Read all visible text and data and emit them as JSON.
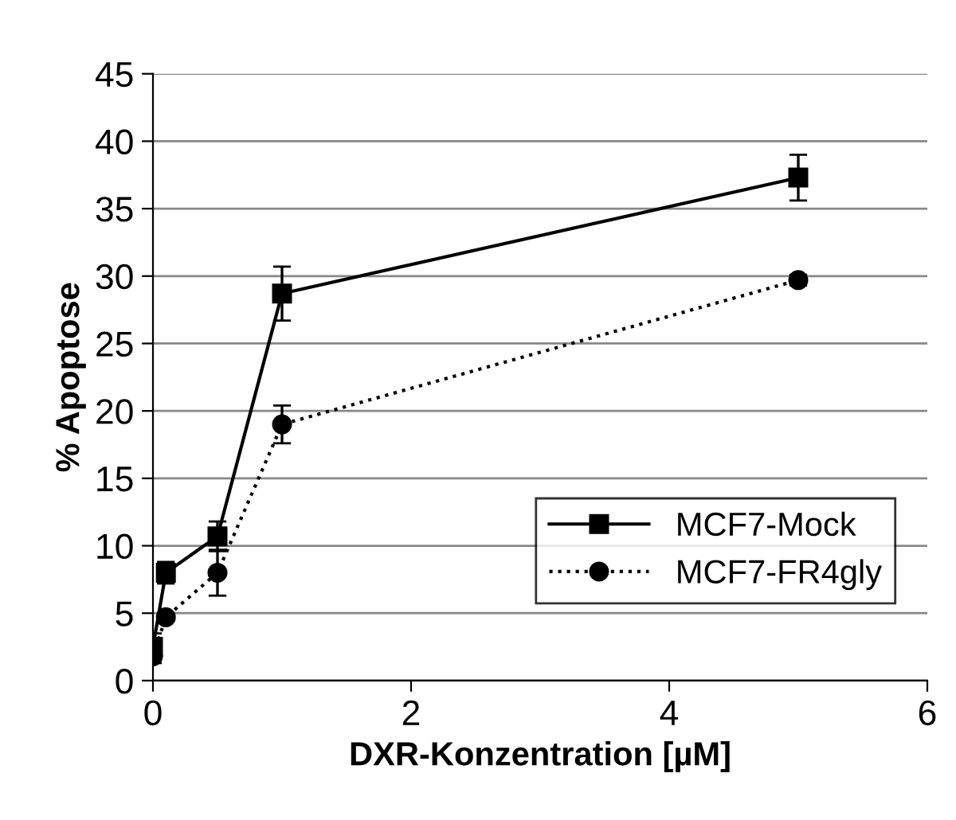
{
  "chart_data": {
    "type": "line",
    "xlabel": "DXR-Konzentration [µM]",
    "ylabel": "% Apoptose",
    "xlim": [
      0,
      6
    ],
    "xticks": [
      0,
      2,
      4,
      6
    ],
    "ylim": [
      0,
      45
    ],
    "yticks": [
      0,
      5,
      10,
      15,
      20,
      25,
      30,
      35,
      40,
      45
    ],
    "grid": "y",
    "legend": "bottom right",
    "x": [
      0,
      0.1,
      0.5,
      1,
      5
    ],
    "series": [
      {
        "name": "MCF7-Mock",
        "color": "#000000",
        "marker": "square",
        "line_style": "solid",
        "values": [
          2.5,
          8.0,
          10.7,
          28.7,
          37.3
        ],
        "errors": [
          1.0,
          0.8,
          1.1,
          2.0,
          1.7
        ]
      },
      {
        "name": "MCF7-FR4gly",
        "color": "#000000",
        "marker": "circle",
        "line_style": "dotted",
        "values": [
          1.8,
          4.7,
          8.0,
          19.0,
          29.7
        ],
        "errors": [
          0.5,
          0.3,
          1.7,
          1.4,
          0.4
        ]
      }
    ]
  }
}
